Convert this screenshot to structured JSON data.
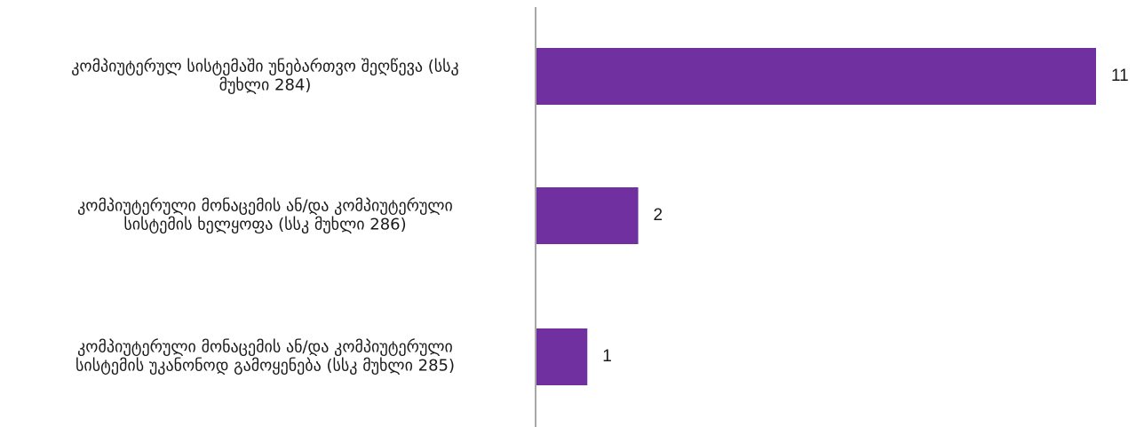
{
  "chart_data": {
    "type": "bar",
    "orientation": "horizontal",
    "categories": [
      [
        "კომპიუტერულ სისტემაში უნებართვო შეღწევა  (სსკ",
        "მუხლი 284)"
      ],
      [
        "კომპიუტერული მონაცემის ან/და კომპიუტერული",
        "სისტემის ხელყოფა (სსკ მუხლი 286)"
      ],
      [
        "კომპიუტერული მონაცემის ან/და კომპიუტერული",
        "სისტემის უკანონოდ გამოყენება (სსკ მუხლი 285)"
      ]
    ],
    "values": [
      11,
      2,
      1
    ],
    "data_labels": [
      "11",
      "2",
      "1"
    ],
    "xlim": [
      0,
      11
    ],
    "bar_color": "#7030a0",
    "axis_color": "#8c8c8c",
    "grid": false,
    "legend": "none"
  }
}
